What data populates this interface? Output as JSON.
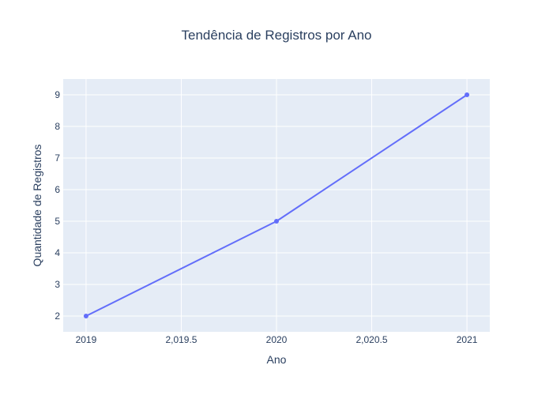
{
  "chart_data": {
    "type": "line",
    "title": "Tendência de Registros por Ano",
    "xlabel": "Ano",
    "ylabel": "Quantidade de Registros",
    "x": [
      2019,
      2020,
      2021
    ],
    "series": [
      {
        "values": [
          2,
          5,
          9
        ]
      }
    ],
    "xlim": [
      2018.88,
      2021.12
    ],
    "ylim": [
      1.5,
      9.5
    ],
    "x_ticks": [
      2019,
      2019.5,
      2020,
      2020.5,
      2021
    ],
    "x_tick_labels": [
      "2019",
      "2,019.5",
      "2020",
      "2,020.5",
      "2021"
    ],
    "y_ticks": [
      2,
      3,
      4,
      5,
      6,
      7,
      8,
      9
    ],
    "y_tick_labels": [
      "2",
      "3",
      "4",
      "5",
      "6",
      "7",
      "8",
      "9"
    ],
    "grid": true,
    "markers": true,
    "colors": {
      "line": "#636efa",
      "plot_bg": "#e5ecf6",
      "grid": "#ffffff",
      "text": "#2a3f5f",
      "page_bg": "#ffffff"
    }
  }
}
